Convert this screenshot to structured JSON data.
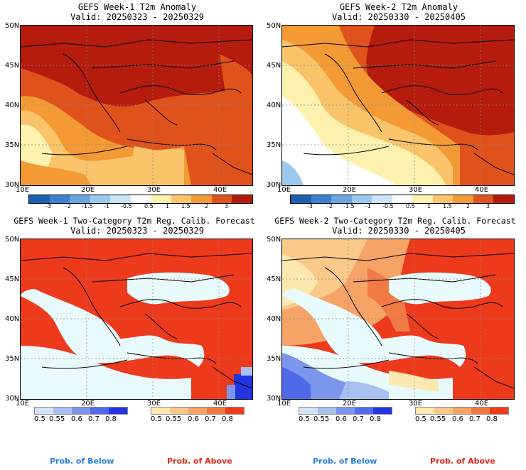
{
  "panels": {
    "tl": {
      "title": "GEFS Week-1 T2m Anomaly",
      "valid": "Valid: 20250323 - 20250329"
    },
    "tr": {
      "title": "GEFS Week-2 T2m Anomaly",
      "valid": "Valid: 20250330 - 20250405"
    },
    "bl": {
      "title": "GEFS Week-1 Two-Category T2m Reg. Calib. Forecast",
      "valid": "Valid: 20250323 - 20250329"
    },
    "br": {
      "title": "GEFS Week-2 Two-Category T2m Reg. Calib. Forecast",
      "valid": "Valid: 20250330 - 20250405"
    }
  },
  "lat_labels": [
    "50N",
    "45N",
    "40N",
    "35N",
    "30N"
  ],
  "lon_labels": [
    "10E",
    "20E",
    "30E",
    "40E"
  ],
  "anomaly_scale": {
    "labels": [
      "-3",
      "-2",
      "-1.5",
      "-1",
      "-0.5",
      "0.5",
      "1",
      "1.5",
      "2",
      "3"
    ],
    "colors": [
      "#1a5fb4",
      "#3d7fd0",
      "#6aa5e0",
      "#9cc8ee",
      "#c8e4f7",
      "#ffffff",
      "#fdf1b0",
      "#f9c46a",
      "#f39a35",
      "#e0521c",
      "#b51c0e"
    ]
  },
  "prob_below": {
    "labels": [
      "0.5",
      "0.55",
      "0.6",
      "0.7",
      "0.8"
    ],
    "colors": [
      "#d6e3f7",
      "#a8c0ef",
      "#7b96ea",
      "#4f6ae8",
      "#2235e0"
    ]
  },
  "prob_above": {
    "labels": [
      "0.5",
      "0.55",
      "0.6",
      "0.7",
      "0.8"
    ],
    "colors": [
      "#fde9b0",
      "#f9c98a",
      "#f5a366",
      "#f27a44",
      "#ee3a1c"
    ]
  },
  "legend": {
    "below": "Prob. of Below",
    "above": "Prob. of Above",
    "below_color": "#2a7fe0",
    "above_color": "#e02a1a"
  }
}
